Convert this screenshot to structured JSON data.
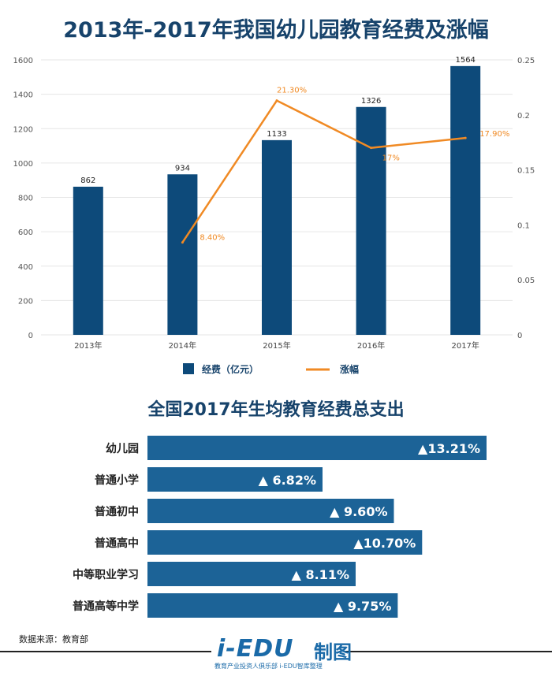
{
  "chart_data": [
    {
      "type": "bar+line",
      "title": "2013年-2017年我国幼儿园教育经费及涨幅",
      "categories": [
        "2013年",
        "2014年",
        "2015年",
        "2016年",
        "2017年"
      ],
      "series": [
        {
          "name": "经费（亿元）",
          "type": "bar",
          "axis": "left",
          "values": [
            862,
            934,
            1133,
            1326,
            1564
          ],
          "labels": [
            "862",
            "934",
            "1133",
            "1326",
            "1564"
          ],
          "color": "#0d4a7a"
        },
        {
          "name": "涨幅",
          "type": "line",
          "axis": "right",
          "values": [
            null,
            0.084,
            0.213,
            0.17,
            0.179
          ],
          "labels": [
            "",
            "8.40%",
            "21.30%",
            "17%",
            "17.90%"
          ],
          "color": "#f08a24"
        }
      ],
      "ylim": [
        0,
        1600
      ],
      "yticks": [
        "0",
        "200",
        "400",
        "600",
        "800",
        "1000",
        "1200",
        "1400",
        "1600"
      ],
      "y2lim": [
        0,
        0.25
      ],
      "y2ticks": [
        "0",
        "0.05",
        "0.1",
        "0.15",
        "0.2",
        "0.25"
      ],
      "legend": "bottom",
      "grid": true
    },
    {
      "type": "bar",
      "orientation": "horizontal",
      "title": "全国2017年生均教育经费总支出",
      "categories": [
        "幼儿园",
        "普通小学",
        "普通初中",
        "普通高中",
        "中等职业学习",
        "普通高等中学"
      ],
      "values": [
        13.21,
        6.82,
        9.6,
        10.7,
        8.11,
        9.75
      ],
      "labels": [
        "▲13.21%",
        "▲ 6.82%",
        "▲ 9.60%",
        "▲10.70%",
        "▲ 8.11%",
        "▲ 9.75%"
      ],
      "color": "#1c6397"
    }
  ],
  "footer": {
    "source": "数据来源：教育部",
    "logo": "i-EDU",
    "logo2": "制图",
    "logo_sub": "教育产业投资人俱乐部  i-EDU智库整理"
  }
}
